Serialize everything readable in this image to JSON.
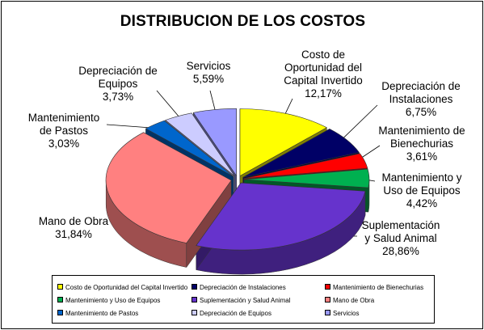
{
  "chart_data": {
    "type": "pie",
    "title": "DISTRIBUCION DE LOS COSTOS",
    "slices": [
      {
        "label": "Costo de Oportunidad del Capital Invertido",
        "value": 12.17,
        "value_label": "12,17%",
        "color": "#ffff00"
      },
      {
        "label": "Depreciación de Instalaciones",
        "value": 6.75,
        "value_label": "6,75%",
        "color": "#000066"
      },
      {
        "label": "Mantenimiento de Bienechurias",
        "value": 3.61,
        "value_label": "3,61%",
        "color": "#ff0000"
      },
      {
        "label": "Mantenimiento y Uso de Equipos",
        "value": 4.42,
        "value_label": "4,42%",
        "color": "#00b050"
      },
      {
        "label": "Suplementación y Salud Animal",
        "value": 28.86,
        "value_label": "28,86%",
        "color": "#6633cc"
      },
      {
        "label": "Mano de Obra",
        "value": 31.84,
        "value_label": "31,84%",
        "color": "#ff8080"
      },
      {
        "label": "Mantenimiento de Pastos",
        "value": 3.03,
        "value_label": "3,03%",
        "color": "#0066cc"
      },
      {
        "label": "Depreciación de Equipos",
        "value": 3.73,
        "value_label": "3,73%",
        "color": "#ccccff"
      },
      {
        "label": "Servicios",
        "value": 5.59,
        "value_label": "5,59%",
        "color": "#9999ff"
      }
    ],
    "callouts": [
      {
        "lines": [
          "Costo de",
          "Oportunidad del",
          "Capital Invertido"
        ]
      },
      {
        "lines": [
          "Depreciación de",
          "Instalaciones"
        ]
      },
      {
        "lines": [
          "Mantenimiento de",
          "Bienechurias"
        ]
      },
      {
        "lines": [
          "Mantenimiento y",
          "Uso de Equipos"
        ]
      },
      {
        "lines": [
          "Suplementación",
          "y Salud Animal"
        ]
      },
      {
        "lines": [
          "Mano de Obra"
        ]
      },
      {
        "lines": [
          "Mantenimiento",
          "de Pastos"
        ]
      },
      {
        "lines": [
          "Depreciación de",
          "Equipos"
        ]
      },
      {
        "lines": [
          "Servicios"
        ]
      }
    ],
    "legend_placement": "bottom",
    "style": "3d-exploded"
  }
}
